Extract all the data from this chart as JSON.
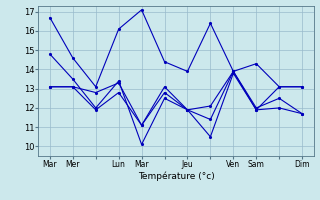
{
  "background_color": "#cce8ec",
  "grid_color": "#99bbcc",
  "line_color": "#0000bb",
  "xlabel": "Température (°c)",
  "ylim": [
    9.5,
    17.3
  ],
  "yticks": [
    10,
    11,
    12,
    13,
    14,
    15,
    16,
    17
  ],
  "day_labels": [
    "Mar",
    "Mer",
    "Lun",
    "Mar",
    "Jeu",
    "Ven",
    "Sam",
    "Dim"
  ],
  "day_positions": [
    0,
    1,
    3,
    4,
    6,
    8,
    9,
    11
  ],
  "n_points": 12,
  "series": [
    [
      16.7,
      14.6,
      13.1,
      16.1,
      17.1,
      14.4,
      13.9,
      16.4,
      13.9,
      14.3,
      13.1,
      13.1
    ],
    [
      13.1,
      13.1,
      11.9,
      12.8,
      11.1,
      12.8,
      11.9,
      11.4,
      13.9,
      11.9,
      13.1,
      13.1
    ],
    [
      14.8,
      13.5,
      12.0,
      13.4,
      10.1,
      12.5,
      11.9,
      10.5,
      13.8,
      11.9,
      12.0,
      11.7
    ],
    [
      13.1,
      13.1,
      12.8,
      13.3,
      11.1,
      13.1,
      11.9,
      12.1,
      13.9,
      12.0,
      12.5,
      11.7
    ]
  ]
}
